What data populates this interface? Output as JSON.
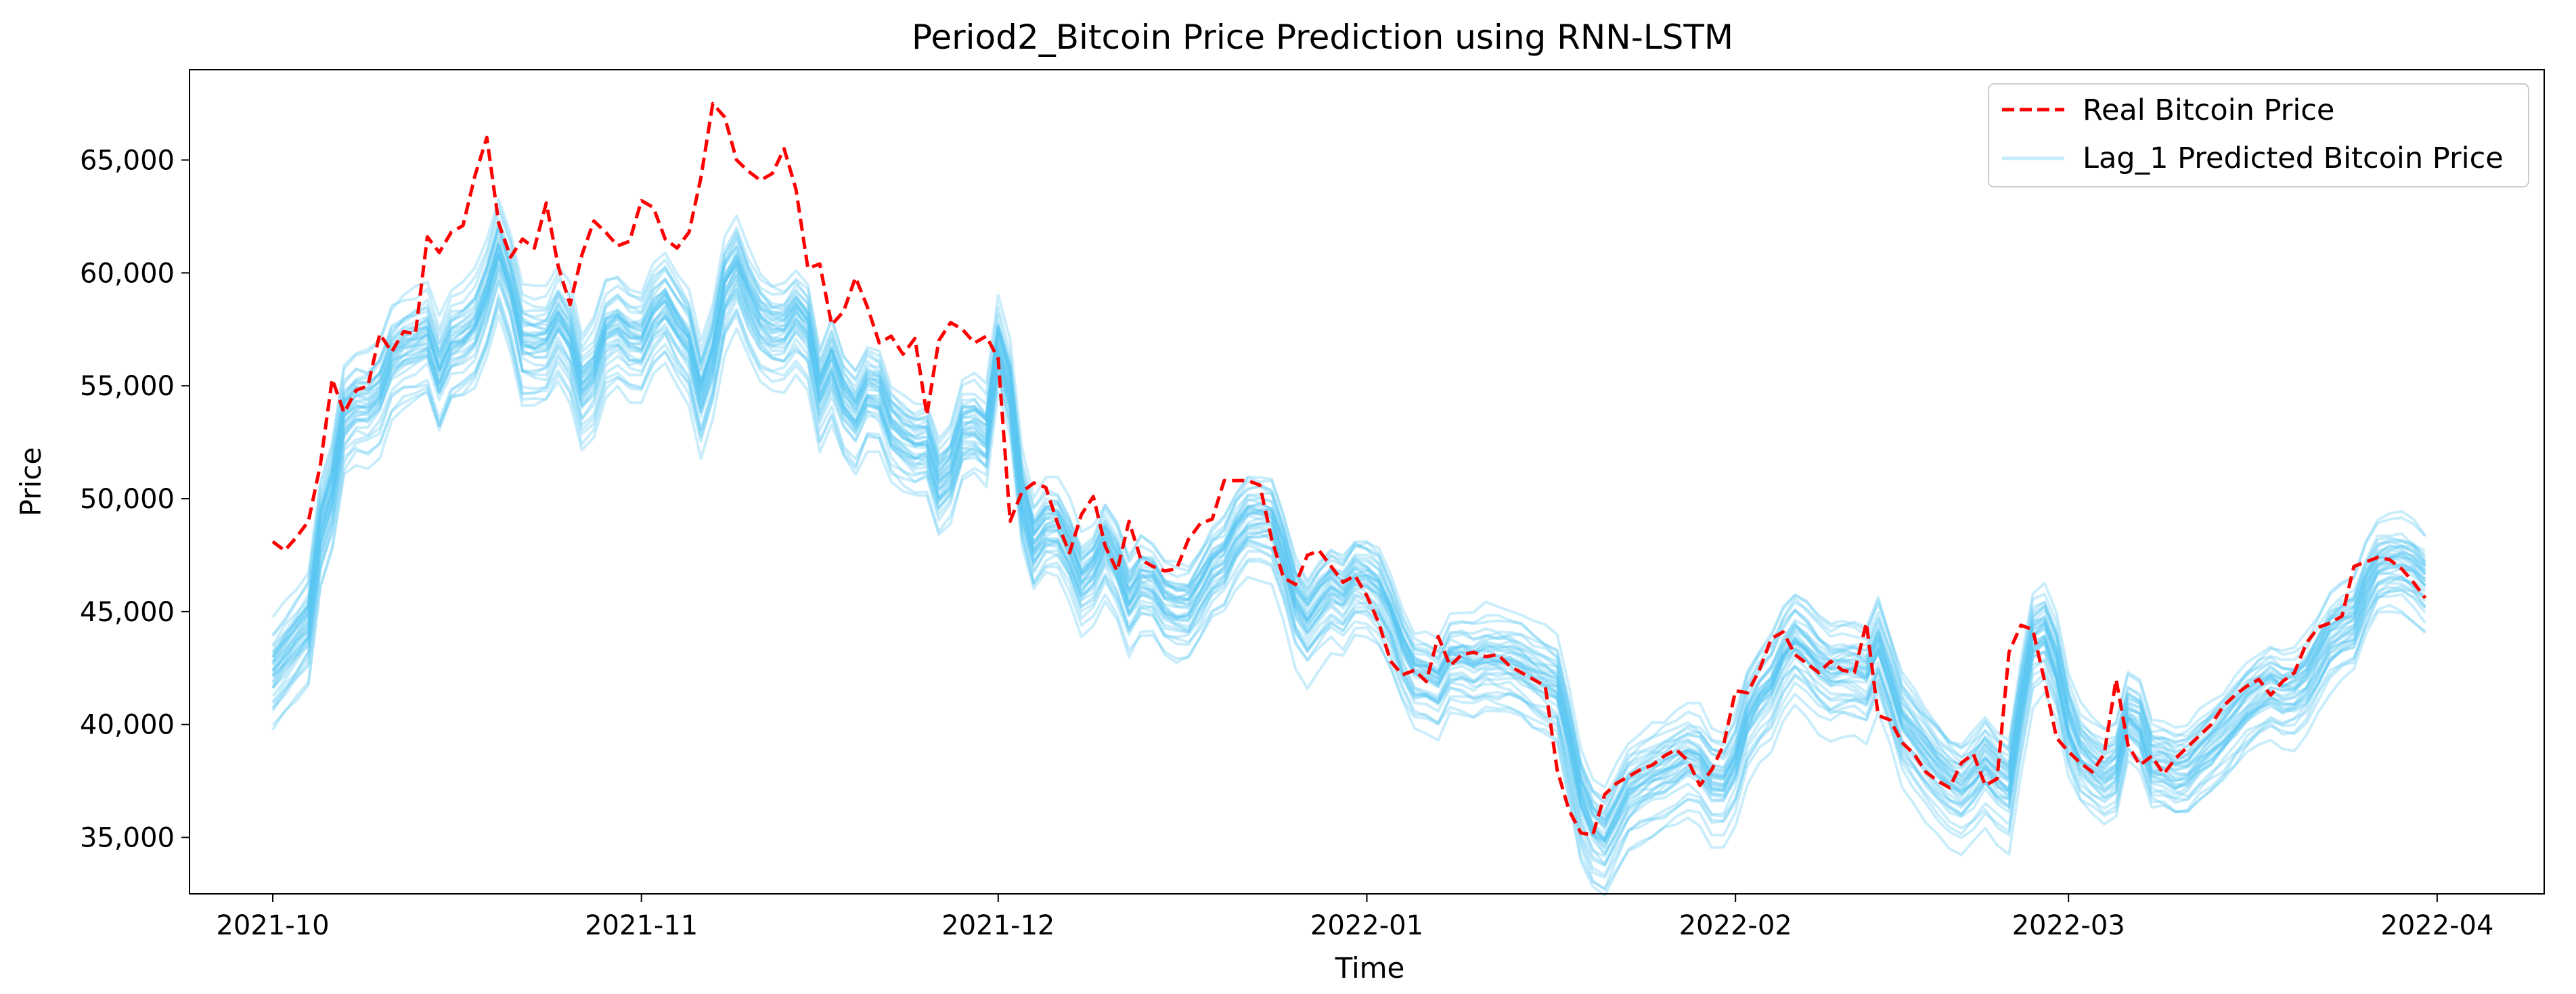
{
  "chart_data": {
    "type": "line",
    "title": "Period2_Bitcoin Price Prediction using RNN-LSTM",
    "xlabel": "Time",
    "ylabel": "Price",
    "xlim": [
      -7,
      191
    ],
    "ylim": [
      32500,
      69000
    ],
    "x_ticks": [
      {
        "label": "2021-10",
        "day": 0
      },
      {
        "label": "2021-11",
        "day": 31
      },
      {
        "label": "2021-12",
        "day": 61
      },
      {
        "label": "2022-01",
        "day": 92
      },
      {
        "label": "2022-02",
        "day": 123
      },
      {
        "label": "2022-03",
        "day": 151
      },
      {
        "label": "2022-04",
        "day": 182
      }
    ],
    "y_ticks": [
      {
        "label": "35,000",
        "value": 35000
      },
      {
        "label": "40,000",
        "value": 40000
      },
      {
        "label": "45,000",
        "value": 45000
      },
      {
        "label": "50,000",
        "value": 50000
      },
      {
        "label": "55,000",
        "value": 55000
      },
      {
        "label": "60,000",
        "value": 60000
      },
      {
        "label": "65,000",
        "value": 65000
      }
    ],
    "legend_position": "top-right",
    "real_series": {
      "name": "Real Bitcoin Price",
      "color": "#ff0000",
      "style": "dashed",
      "x": [
        0,
        1,
        2,
        3,
        4,
        5,
        6,
        7,
        8,
        9,
        10,
        11,
        12,
        13,
        14,
        15,
        16,
        17,
        18,
        19,
        20,
        21,
        22,
        23,
        24,
        25,
        26,
        27,
        28,
        29,
        30,
        31,
        32,
        33,
        34,
        35,
        36,
        37,
        38,
        39,
        40,
        41,
        42,
        43,
        44,
        45,
        46,
        47,
        48,
        49,
        50,
        51,
        52,
        53,
        54,
        55,
        56,
        57,
        58,
        59,
        60,
        61,
        62,
        63,
        64,
        65,
        66,
        67,
        68,
        69,
        70,
        71,
        72,
        73,
        74,
        75,
        76,
        77,
        78,
        79,
        80,
        81,
        82,
        83,
        84,
        85,
        86,
        87,
        88,
        89,
        90,
        91,
        92,
        93,
        94,
        95,
        96,
        97,
        98,
        99,
        100,
        101,
        102,
        103,
        104,
        105,
        106,
        107,
        108,
        109,
        110,
        111,
        112,
        113,
        114,
        115,
        116,
        117,
        118,
        119,
        120,
        121,
        122,
        123,
        124,
        125,
        126,
        127,
        128,
        129,
        130,
        131,
        132,
        133,
        134,
        135,
        136,
        137,
        138,
        139,
        140,
        141,
        142,
        143,
        144,
        145,
        146,
        147,
        148,
        149,
        150,
        151,
        152,
        153,
        154,
        155,
        156,
        157,
        158,
        159,
        160,
        161,
        162,
        163,
        164,
        165,
        166,
        167,
        168,
        169,
        170,
        171,
        172,
        173,
        174,
        175,
        176,
        177,
        178,
        179,
        180,
        181
      ],
      "values": [
        48100,
        47700,
        48300,
        49000,
        51500,
        55300,
        53800,
        54800,
        55000,
        57300,
        56500,
        57400,
        57300,
        61600,
        60900,
        61800,
        62100,
        64300,
        66000,
        62200,
        60700,
        61500,
        61100,
        63100,
        60300,
        58600,
        60800,
        62300,
        61800,
        61200,
        61400,
        63200,
        62900,
        61500,
        61100,
        61800,
        64200,
        67500,
        66900,
        65000,
        64500,
        64100,
        64400,
        65500,
        63700,
        60200,
        60400,
        57700,
        58300,
        59800,
        58500,
        56900,
        57200,
        56400,
        57100,
        53700,
        57000,
        57800,
        57500,
        56900,
        57200,
        56200,
        49000,
        50300,
        50700,
        50500,
        48900,
        47600,
        49300,
        50100,
        47900,
        46800,
        49000,
        47300,
        47000,
        46800,
        46900,
        48200,
        48900,
        49100,
        50800,
        50800,
        50800,
        50600,
        48200,
        46500,
        46200,
        47500,
        47700,
        47000,
        46300,
        46600,
        45700,
        44500,
        42800,
        42200,
        42400,
        41900,
        43900,
        42600,
        43100,
        43200,
        43000,
        43100,
        42600,
        42300,
        42000,
        41700,
        38000,
        36200,
        35200,
        35100,
        36900,
        37400,
        37700,
        38000,
        38200,
        38600,
        38900,
        38400,
        37300,
        38000,
        39100,
        41500,
        41400,
        42400,
        43800,
        44100,
        43100,
        42700,
        42300,
        42800,
        42400,
        42300,
        44500,
        40400,
        40200,
        39200,
        38700,
        37900,
        37500,
        37200,
        38300,
        38700,
        37300,
        37600,
        43200,
        44400,
        44200,
        41900,
        39400,
        38800,
        38300,
        37900,
        38700,
        42000,
        39100,
        38200,
        38600,
        37800,
        38500,
        39000,
        39500,
        40000,
        40800,
        41300,
        41700,
        42000,
        41300,
        41900,
        42300,
        43600,
        44300,
        44500,
        44800,
        47000,
        47200,
        47400,
        47300,
        46900,
        46300,
        45600
      ]
    },
    "predicted_series": {
      "name": "Lag_1 Predicted Bitcoin Price",
      "color": "#5ac8f2",
      "count": 40,
      "note": "ensemble of 40 lagged prediction runs; band spans roughly ±2-3k around the mean"
    }
  }
}
